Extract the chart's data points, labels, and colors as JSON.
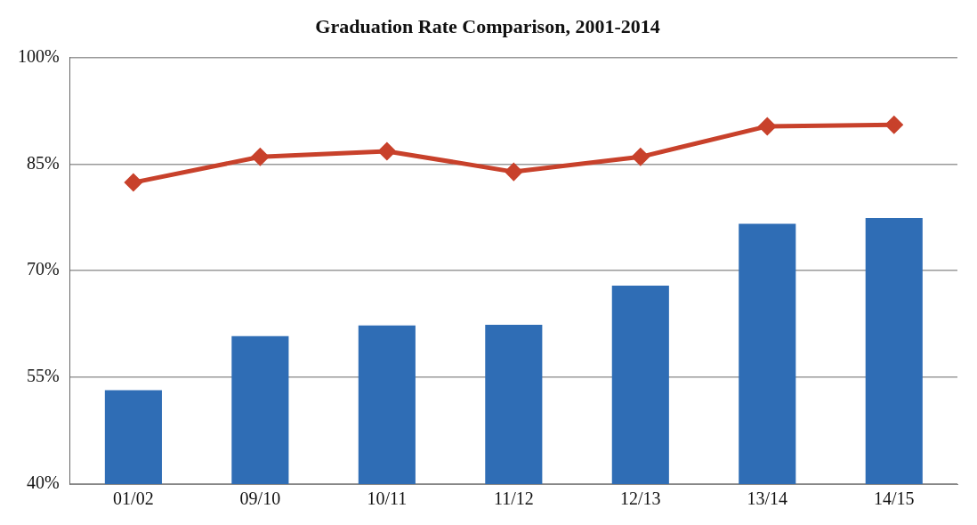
{
  "chart_data": {
    "type": "bar",
    "title": "Graduation Rate Comparison, 2001-2014",
    "categories": [
      "01/02",
      "09/10",
      "10/11",
      "11/12",
      "12/13",
      "13/14",
      "14/15"
    ],
    "series": [
      {
        "color": "#2f6db5",
        "values": [
          53.2,
          60.8,
          62.3,
          62.4,
          67.9,
          76.6,
          77.4
        ]
      },
      {
        "type": "line",
        "color": "#c8412b",
        "values": [
          82.4,
          86,
          86.8,
          83.9,
          86,
          90.3,
          90.5
        ]
      }
    ],
    "ylim": [
      40,
      100
    ],
    "yticks": [
      {
        "value": 40,
        "label": "40%"
      },
      {
        "value": 55,
        "label": "55%"
      },
      {
        "value": 70,
        "label": "70%"
      },
      {
        "value": 85,
        "label": "85%"
      },
      {
        "value": 100,
        "label": "100%"
      }
    ],
    "grid": "y",
    "marker": "diamond",
    "legend": false
  }
}
